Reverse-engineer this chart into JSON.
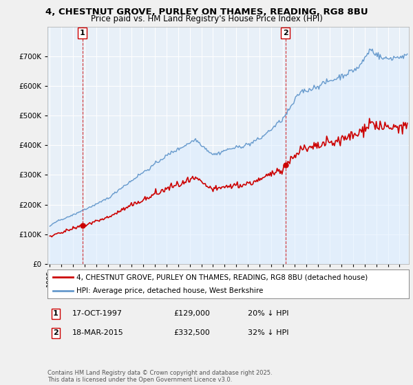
{
  "title_line1": "4, CHESTNUT GROVE, PURLEY ON THAMES, READING, RG8 8BU",
  "title_line2": "Price paid vs. HM Land Registry's House Price Index (HPI)",
  "legend_label_red": "4, CHESTNUT GROVE, PURLEY ON THAMES, READING, RG8 8BU (detached house)",
  "legend_label_blue": "HPI: Average price, detached house, West Berkshire",
  "annotation1_label": "1",
  "annotation1_date": "17-OCT-1997",
  "annotation1_price": "£129,000",
  "annotation1_hpi": "20% ↓ HPI",
  "annotation2_label": "2",
  "annotation2_date": "18-MAR-2015",
  "annotation2_price": "£332,500",
  "annotation2_hpi": "32% ↓ HPI",
  "footer": "Contains HM Land Registry data © Crown copyright and database right 2025.\nThis data is licensed under the Open Government Licence v3.0.",
  "sale1_year": 1997.79,
  "sale1_price": 129000,
  "sale2_year": 2015.21,
  "sale2_price": 332500,
  "red_color": "#cc0000",
  "blue_color": "#6699cc",
  "blue_fill_color": "#ddeeff",
  "background_color": "#f0f0f0",
  "plot_bg_color": "#e8f0f8",
  "ylim": [
    0,
    800000
  ],
  "xlim_start": 1994.8,
  "xlim_end": 2025.8
}
